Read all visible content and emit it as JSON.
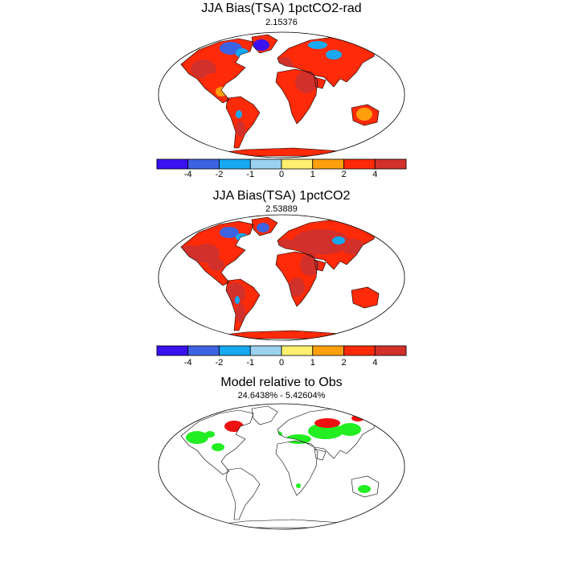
{
  "colors": {
    "bins": [
      "#3a12f2",
      "#3d62e2",
      "#17a8f2",
      "#9bd1ee",
      "#fdf06e",
      "#fe9f0d",
      "#fe2a08",
      "#d2302b"
    ],
    "land_outline": "#000000",
    "map_border": "#000000",
    "better": "#22ee22",
    "worse": "#ee1111"
  },
  "colorbar": {
    "tick_labels": [
      "-4",
      "-2",
      "-1",
      "0",
      "1",
      "2",
      "4"
    ]
  },
  "panels": [
    {
      "title": "JJA Bias(TSA) 1pctCO2-rad",
      "subtitle": "2.15376",
      "type": "bias"
    },
    {
      "title": "JJA Bias(TSA) 1pctCO2",
      "subtitle": "2.53889",
      "type": "bias"
    },
    {
      "title": "Model relative to Obs",
      "subtitle": "24.6438% - 5.42604%",
      "type": "relative"
    }
  ]
}
